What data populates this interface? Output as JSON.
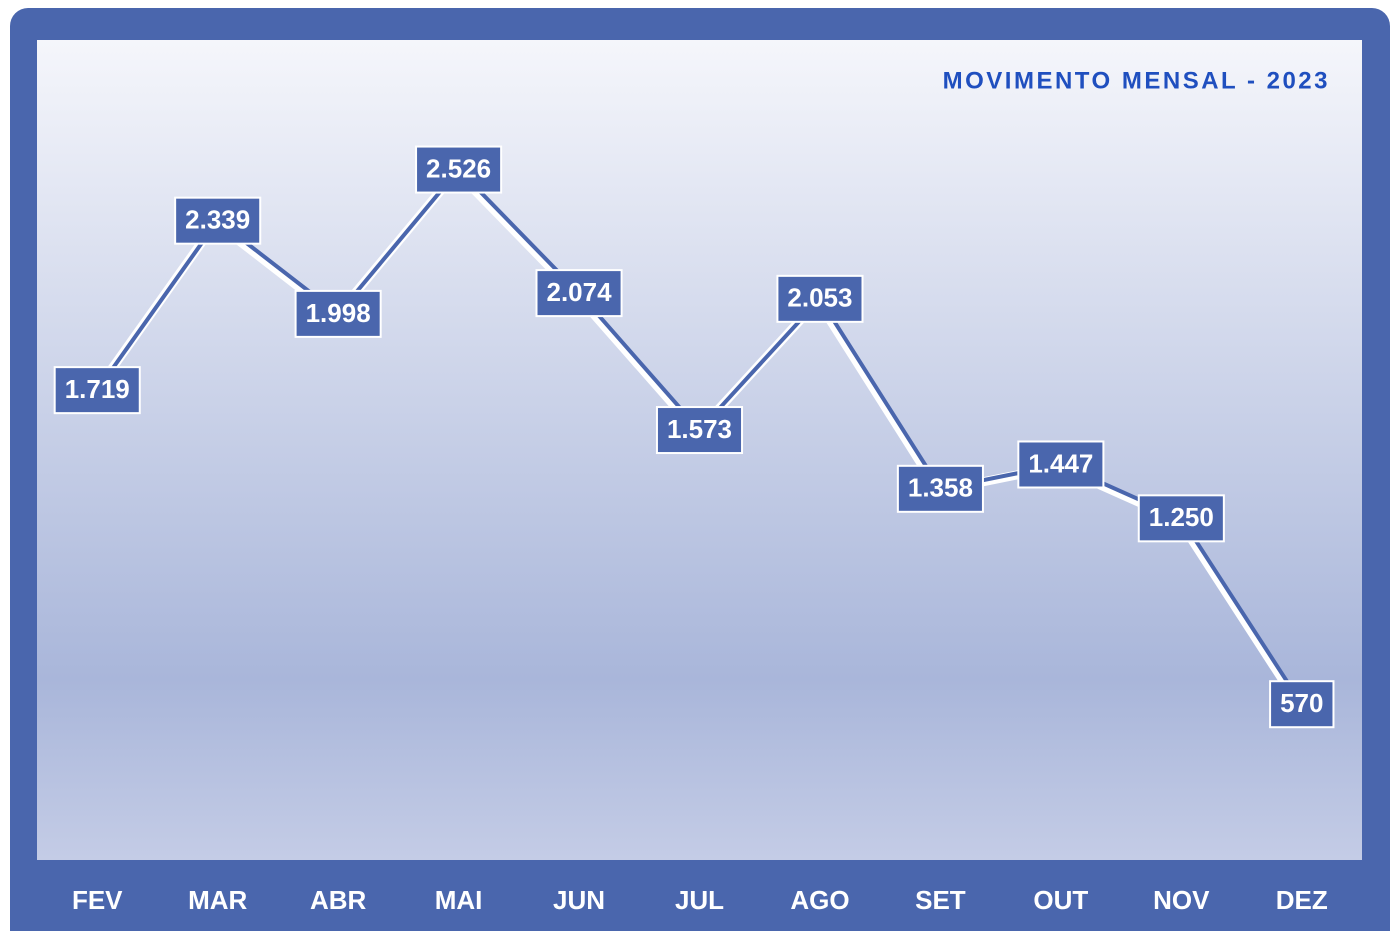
{
  "chart_data": {
    "type": "line",
    "title": "MOVIMENTO MENSAL - 2023",
    "categories": [
      "FEV",
      "MAR",
      "ABR",
      "MAI",
      "JUN",
      "JUL",
      "AGO",
      "SET",
      "OUT",
      "NOV",
      "DEZ"
    ],
    "series": [
      {
        "color": "#4a66ad",
        "values": [
          1719,
          2339,
          1998,
          2526,
          2074,
          1573,
          2053,
          1358,
          1447,
          1250,
          570
        ],
        "value_labels": [
          "1.719",
          "2.339",
          "1.998",
          "2.526",
          "2.074",
          "1.573",
          "2.053",
          "1.358",
          "1.447",
          "1.250",
          "570"
        ]
      }
    ],
    "ylim": [
      0,
      3000
    ]
  }
}
